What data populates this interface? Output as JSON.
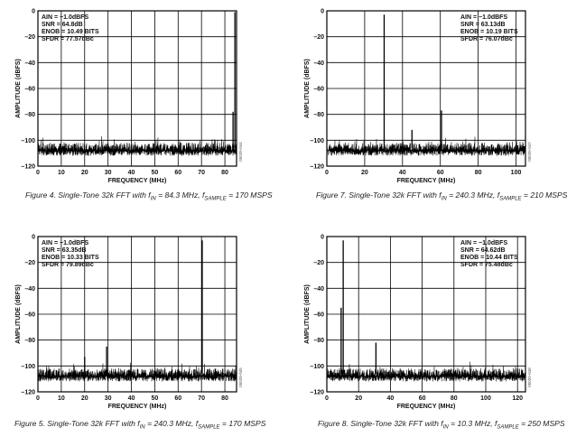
{
  "chart_data": [
    {
      "id": "fig4",
      "type": "line",
      "caption_parts": {
        "prefix": "Figure 4. Single-Tone 32k FFT with f",
        "in_sub": "IN",
        "mid": " = 84.3 MHz, f",
        "sample_sub": "SAMPLE",
        "suffix": " = 170 MSPS"
      },
      "xlabel": "FREQUENCY (MHz)",
      "ylabel": "AMPLITUDE (dBFS)",
      "xlim": [
        0,
        85
      ],
      "ylim": [
        -120,
        0
      ],
      "xticks": [
        0,
        10,
        20,
        30,
        40,
        50,
        60,
        70,
        80
      ],
      "yticks": [
        0,
        -20,
        -40,
        -60,
        -80,
        -100,
        -120
      ],
      "annotations": [
        "AIN = −1.0dBFS",
        "SNR = 64.8dB",
        "ENOB = 10.49 BITS",
        "SFDR = 77.57dBc"
      ],
      "annotation_side": "left",
      "side_code": "05039-044",
      "noise_floor": -100,
      "peaks": [
        {
          "x": 84.3,
          "y": -1
        },
        {
          "x": 83.5,
          "y": -78
        }
      ]
    },
    {
      "id": "fig7",
      "type": "line",
      "caption_parts": {
        "prefix": "Figure 7. Single-Tone 32k FFT with f",
        "in_sub": "IN",
        "mid": " = 240.3 MHz, f",
        "sample_sub": "SAMPLE",
        "suffix": " = 210 MSPS"
      },
      "xlabel": "FREQUENCY (MHz)",
      "ylabel": "AMPLITUDE (dBFS)",
      "xlim": [
        0,
        105
      ],
      "ylim": [
        -120,
        0
      ],
      "xticks": [
        0,
        20,
        40,
        60,
        80,
        100
      ],
      "yticks": [
        0,
        -20,
        -40,
        -60,
        -80,
        -100,
        -120
      ],
      "annotations": [
        "AIN = −1.0dBFS",
        "SNR = 63.13dB",
        "ENOB = 10.19 BITS",
        "SFDR = 76.07dBc"
      ],
      "annotation_side": "right",
      "side_code": "05039-047",
      "noise_floor": -100,
      "peaks": [
        {
          "x": 30.3,
          "y": -3
        },
        {
          "x": 60.6,
          "y": -77
        },
        {
          "x": 45,
          "y": -92
        }
      ]
    },
    {
      "id": "fig5",
      "type": "line",
      "caption_parts": {
        "prefix": "Figure 5. Single-Tone 32k FFT with f",
        "in_sub": "IN",
        "mid": " = 240.3 MHz, f",
        "sample_sub": "SAMPLE",
        "suffix": " = 170 MSPS"
      },
      "xlabel": "FREQUENCY (MHz)",
      "ylabel": "AMPLITUDE (dBFS)",
      "xlim": [
        0,
        85
      ],
      "ylim": [
        -120,
        0
      ],
      "xticks": [
        0,
        10,
        20,
        30,
        40,
        50,
        60,
        70,
        80
      ],
      "yticks": [
        0,
        -20,
        -40,
        -60,
        -80,
        -100,
        -120
      ],
      "annotations": [
        "AIN = −1.0dBFS",
        "SNR = 63.35dB",
        "ENOB = 10.33 BITS",
        "SFDR = 79.89dBc"
      ],
      "annotation_side": "left",
      "side_code": "05039-045",
      "noise_floor": -100,
      "peaks": [
        {
          "x": 70.3,
          "y": -3
        },
        {
          "x": 29.4,
          "y": -85
        },
        {
          "x": 20,
          "y": -93
        }
      ]
    },
    {
      "id": "fig8",
      "type": "line",
      "caption_parts": {
        "prefix": "Figure 8. Single-Tone 32k FFT with f",
        "in_sub": "IN",
        "mid": " = 10.3 MHz, f",
        "sample_sub": "SAMPLE",
        "suffix": " = 250 MSPS"
      },
      "xlabel": "FREQUENCY (MHz)",
      "ylabel": "AMPLITUDE (dBFS)",
      "xlim": [
        0,
        125
      ],
      "ylim": [
        -120,
        0
      ],
      "xticks": [
        0,
        20,
        40,
        60,
        80,
        100,
        120
      ],
      "yticks": [
        0,
        -20,
        -40,
        -60,
        -80,
        -100,
        -120
      ],
      "annotations": [
        "AIN = −1.0dBFS",
        "SNR = 64.62dB",
        "ENOB = 10.44 BITS",
        "SFDR = 75.48dBc"
      ],
      "annotation_side": "right",
      "side_code": "05039-048",
      "noise_floor": -100,
      "peaks": [
        {
          "x": 10.3,
          "y": -3
        },
        {
          "x": 9,
          "y": -55
        },
        {
          "x": 30.9,
          "y": -82
        }
      ]
    }
  ]
}
